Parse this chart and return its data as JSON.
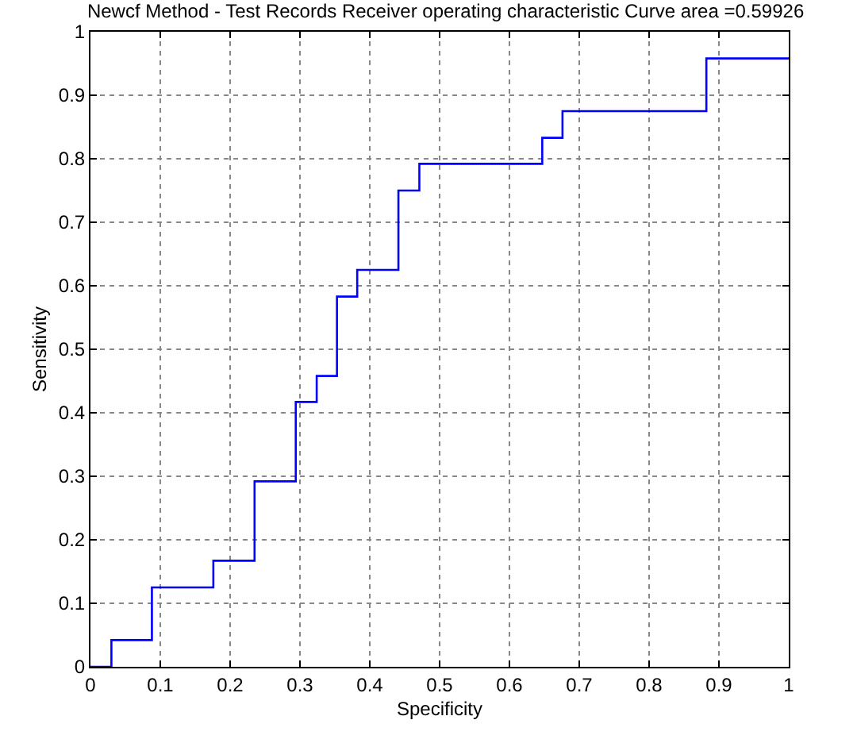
{
  "chart_data": {
    "type": "step",
    "title": "Newcf Method - Test Records Receiver operating characteristic Curve area =0.59926",
    "xlabel": "Specificity",
    "ylabel": "Sensitivity",
    "x": [
      0,
      0.03,
      0.088,
      0.176,
      0.235,
      0.294,
      0.324,
      0.353,
      0.382,
      0.441,
      0.471,
      0.647,
      0.676,
      0.882,
      1
    ],
    "series": [
      {
        "color": "#0000ff",
        "values": [
          0,
          0.042,
          0.125,
          0.167,
          0.292,
          0.417,
          0.458,
          0.583,
          0.625,
          0.75,
          0.792,
          0.833,
          0.875,
          0.958,
          0.958
        ]
      }
    ],
    "xlim": [
      0,
      1
    ],
    "ylim": [
      0,
      1
    ],
    "xticks": [
      0,
      0.1,
      0.2,
      0.3,
      0.4,
      0.5,
      0.6,
      0.7,
      0.8,
      0.9,
      1
    ],
    "yticks": [
      0,
      0.1,
      0.2,
      0.3,
      0.4,
      0.5,
      0.6,
      0.7,
      0.8,
      0.9,
      1
    ],
    "grid": true,
    "line_style": "solid",
    "marker": "none"
  }
}
